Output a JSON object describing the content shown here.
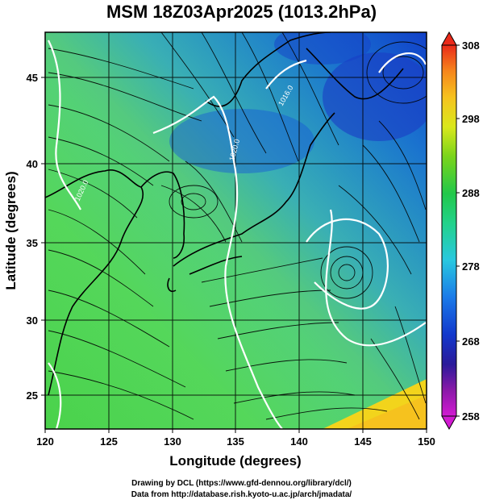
{
  "title": "MSM 18Z03Apr2025 (1013.2hPa)",
  "axes": {
    "xlabel": "Longitude (degrees)",
    "ylabel": "Latitude  (degrees)",
    "xticks": [
      "120",
      "125",
      "130",
      "135",
      "140",
      "145",
      "150"
    ],
    "yticks": [
      "25",
      "30",
      "35",
      "40",
      "45"
    ]
  },
  "colorbar": {
    "ticks": [
      "308",
      "298",
      "288",
      "278",
      "268",
      "258"
    ],
    "colors": [
      "#cc22cc",
      "#8a1aa8",
      "#2a1a9a",
      "#1238cc",
      "#1a6ee8",
      "#1ea8f0",
      "#28d8dc",
      "#22d28a",
      "#22c84a",
      "#6ad418",
      "#bce81a",
      "#e8e61e",
      "#f6c21e",
      "#f68a1c",
      "#ee3a1a"
    ]
  },
  "contours": [
    {
      "label": "1020.0"
    },
    {
      "label": "1016.0"
    },
    {
      "label": "1020.0"
    }
  ],
  "footer": {
    "line1": "Drawing by DCL (https://www.gfd-dennou.org/library/dcl/)",
    "line2": "Data from http://database.rish.kyoto-u.ac.jp/arch/jmadata/"
  }
}
